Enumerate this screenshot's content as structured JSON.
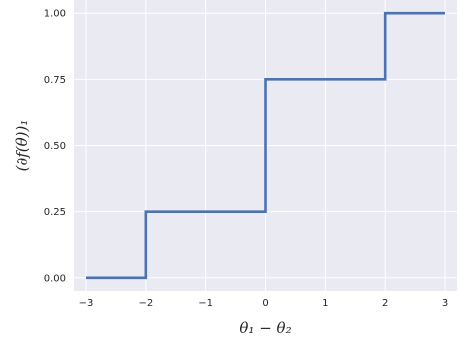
{
  "chart_data": {
    "type": "line",
    "step": true,
    "xlabel": "θ₁ − θ₂",
    "ylabel": "(∂f(θ))₁",
    "xlim": [
      -3.2,
      3.2
    ],
    "ylim": [
      -0.05,
      1.05
    ],
    "grid": true,
    "x_ticks": [
      -3,
      -2,
      -1,
      0,
      1,
      2,
      3
    ],
    "x_tick_labels": [
      "−3",
      "−2",
      "−1",
      "0",
      "1",
      "2",
      "3"
    ],
    "y_ticks": [
      0.0,
      0.25,
      0.5,
      0.75,
      1.0
    ],
    "y_tick_labels": [
      "0.00",
      "0.25",
      "0.50",
      "0.75",
      "1.00"
    ],
    "series": [
      {
        "x": [
          -3,
          -2,
          -2,
          0,
          0,
          2,
          2,
          3
        ],
        "y": [
          0,
          0,
          0.25,
          0.25,
          0.75,
          0.75,
          1.0,
          1.0
        ]
      }
    ],
    "colors": {
      "line": "#4c72b0",
      "background": "#eaeaf2",
      "grid": "#ffffff"
    }
  }
}
